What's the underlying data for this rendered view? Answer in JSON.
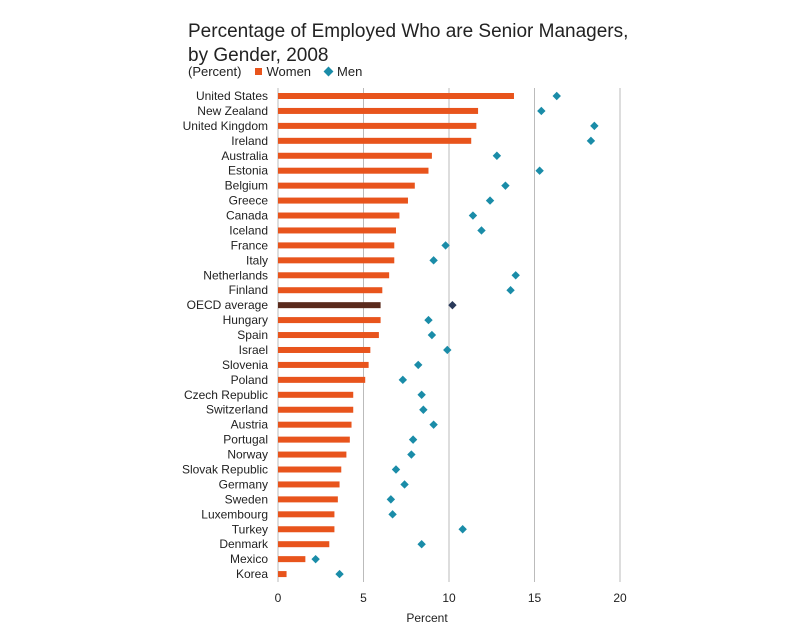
{
  "chart_data": {
    "type": "bar",
    "title_lines": [
      "Percentage of Employed Who are Senior Managers,",
      "by Gender, 2008"
    ],
    "subtitle": "(Percent)",
    "xlabel": "Percent",
    "xlim": [
      0,
      20
    ],
    "xticks": [
      0,
      5,
      10,
      15,
      20
    ],
    "grid": true,
    "legend_position": "top",
    "colors": {
      "women": "#E8541C",
      "men": "#1A8CA8",
      "oecd_women": "#5A2A1C",
      "oecd_men": "#2A3A5A",
      "grid": "#BBBBBB"
    },
    "categories": [
      "United States",
      "New Zealand",
      "United Kingdom",
      "Ireland",
      "Australia",
      "Estonia",
      "Belgium",
      "Greece",
      "Canada",
      "Iceland",
      "France",
      "Italy",
      "Netherlands",
      "Finland",
      "OECD average",
      "Hungary",
      "Spain",
      "Israel",
      "Slovenia",
      "Poland",
      "Czech Republic",
      "Switzerland",
      "Austria",
      "Portugal",
      "Norway",
      "Slovak Republic",
      "Germany",
      "Sweden",
      "Luxembourg",
      "Turkey",
      "Denmark",
      "Mexico",
      "Korea"
    ],
    "highlight_category": "OECD average",
    "series": [
      {
        "name": "Women",
        "mark": "bar",
        "values": [
          13.8,
          11.7,
          11.6,
          11.3,
          9.0,
          8.8,
          8.0,
          7.6,
          7.1,
          6.9,
          6.8,
          6.8,
          6.5,
          6.1,
          6.0,
          6.0,
          5.9,
          5.4,
          5.3,
          5.1,
          4.4,
          4.4,
          4.3,
          4.2,
          4.0,
          3.7,
          3.6,
          3.5,
          3.3,
          3.3,
          3.0,
          1.6,
          0.5
        ]
      },
      {
        "name": "Men",
        "mark": "diamond",
        "values": [
          16.3,
          15.4,
          18.5,
          18.3,
          12.8,
          15.3,
          13.3,
          12.4,
          11.4,
          11.9,
          9.8,
          9.1,
          13.9,
          13.6,
          10.2,
          8.8,
          9.0,
          9.9,
          8.2,
          7.3,
          8.4,
          8.5,
          9.1,
          7.9,
          7.8,
          6.9,
          7.4,
          6.6,
          6.7,
          10.8,
          8.4,
          2.2,
          3.6
        ]
      }
    ]
  }
}
